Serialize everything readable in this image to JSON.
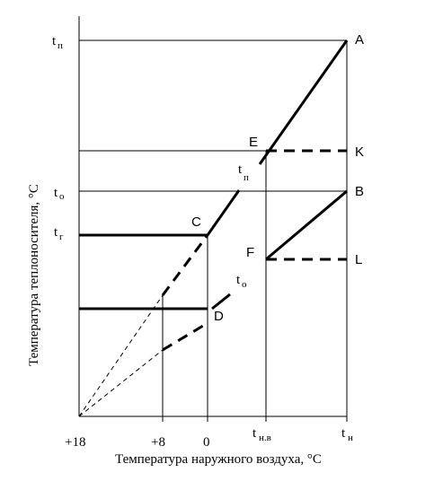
{
  "diagram": {
    "y_axis_label": "Температура теплоносителя, °С",
    "x_axis_label": "Температура наружного воздуха, °С",
    "x_ticks": [
      "+18",
      "+8",
      "0"
    ],
    "x_tick_tnv": {
      "base": "t",
      "sub": "н.в"
    },
    "x_tick_tn": {
      "base": "t",
      "sub": "н"
    },
    "y_tick_tp": {
      "base": "t",
      "sub": "п"
    },
    "y_tick_to": {
      "base": "t",
      "sub": "о"
    },
    "y_tick_tg": {
      "base": "t",
      "sub": "г"
    },
    "points": {
      "A": "A",
      "B": "B",
      "C": "C",
      "D": "D",
      "E": "E",
      "F": "F",
      "K": "K",
      "L": "L"
    },
    "curve_tp": {
      "base": "t",
      "sub": "п"
    },
    "curve_to": {
      "base": "t",
      "sub": "о"
    }
  }
}
